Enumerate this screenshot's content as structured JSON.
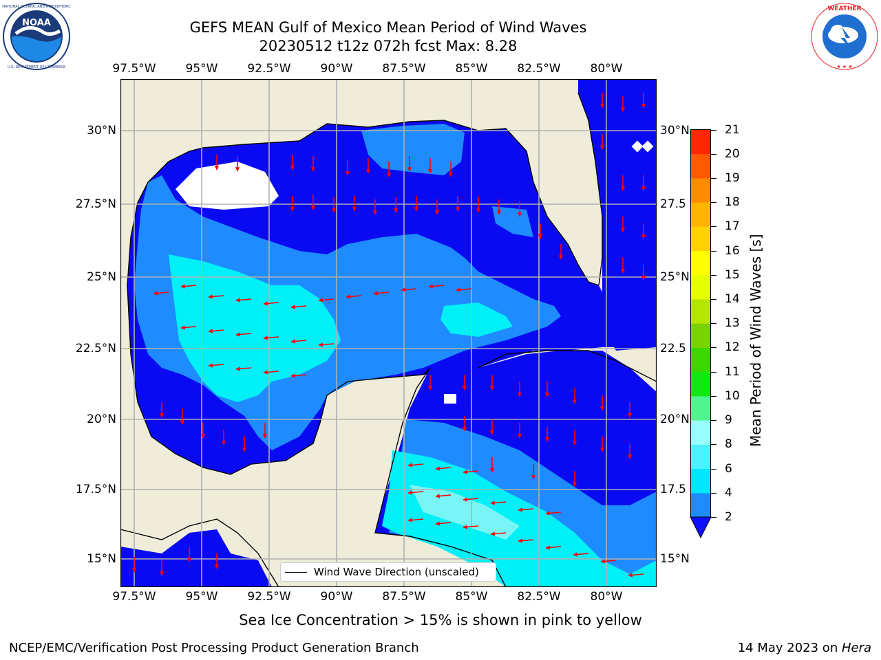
{
  "header": {
    "title_line1": "GEFS MEAN Gulf of Mexico Mean Period of Wind Waves",
    "title_line2": "20230512 t12z 072h fcst   Max: 8.28"
  },
  "logos": {
    "left": {
      "name": "NOAA",
      "ring_text": "NATIONAL OCEANIC AND ATMOSPHERIC ADMINISTRATION  U.S. DEPARTMENT OF COMMERCE",
      "colors": {
        "ring": "#ffffff",
        "outer": "#1a3a7a",
        "top": "#2a4a8f",
        "wave": "#1e88e5"
      }
    },
    "right": {
      "name": "NATIONAL WEATHER SERVICE",
      "colors": {
        "ring_text": "#e81c24",
        "inner": "#1f6fd1",
        "cloud": "#ffffff"
      }
    }
  },
  "map": {
    "lon_ticks": [
      "97.5°W",
      "95°W",
      "92.5°W",
      "90°W",
      "87.5°W",
      "85°W",
      "82.5°W",
      "80°W"
    ],
    "lat_ticks_left": [
      "30°N",
      "27.5°N",
      "25°N",
      "22.5°N",
      "20°N",
      "17.5°N",
      "15°N"
    ],
    "lat_ticks_right": [
      "30°N",
      "27.5",
      "25°N",
      "22.5",
      "20°N",
      "17.5",
      "15°N"
    ],
    "colors": {
      "land": "#efecda",
      "ocean_deep": "#0a0af2",
      "ocean_mid": "#1e8cff",
      "ocean_light": "#00f0f8",
      "ocean_pale": "#7af5f5",
      "grid": "#b0b0b0",
      "arrow": "#ff0000",
      "coast": "#000000"
    },
    "legend_label": "Wind Wave Direction (unscaled)"
  },
  "colorbar": {
    "label": "Mean Period of Wind Waves [s]",
    "ticks": [
      "2",
      "4",
      "6",
      "8",
      "9",
      "10",
      "11",
      "12",
      "13",
      "14",
      "15",
      "16",
      "17",
      "18",
      "19",
      "20",
      "21"
    ],
    "colors": [
      "#0f0fff",
      "#1e8cff",
      "#00e6ff",
      "#4cf0ff",
      "#98ffff",
      "#50f590",
      "#14e614",
      "#3cd700",
      "#7ad200",
      "#b4e600",
      "#e6ff00",
      "#ffff00",
      "#ffd200",
      "#ffb400",
      "#ff8c00",
      "#ff5a00",
      "#ff2800",
      "#ff0000"
    ]
  },
  "footer": {
    "note": "Sea Ice Concentration > 15% is shown in pink to yellow",
    "credit": "NCEP/EMC/Verification Post Processing Product Generation Branch",
    "date": "14 May 2023 on ",
    "machine": "Hera"
  }
}
